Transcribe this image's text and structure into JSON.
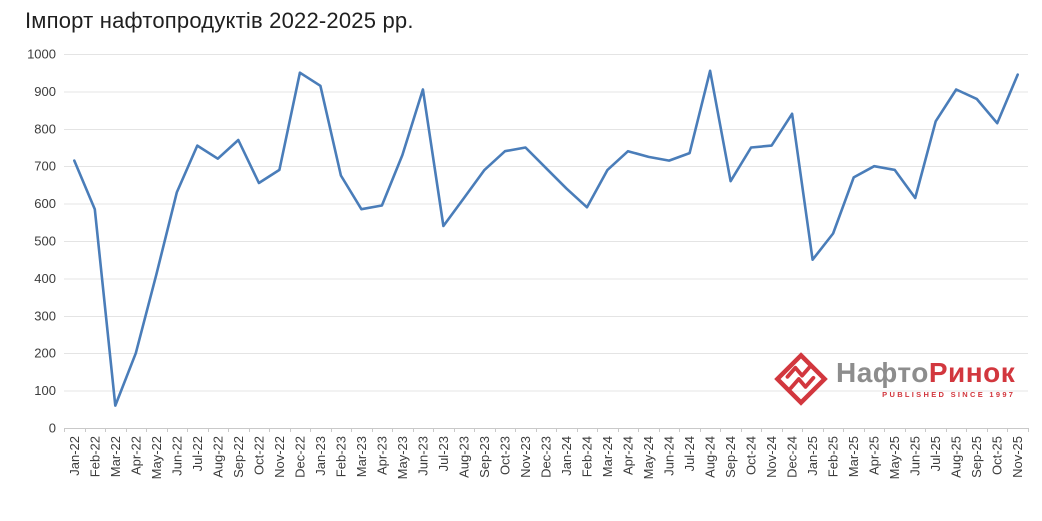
{
  "title": "Імпорт нафтопродуктів 2022-2025 рр.",
  "logo": {
    "icon": "diamond-zigzag-icon",
    "name_gray": "Нафто",
    "name_red": "Ринок",
    "tagline": "PUBLISHED SINCE 1997"
  },
  "colors": {
    "line": "#4a7db9",
    "grid": "#e4e4e4",
    "axis_line": "#c9c9c9",
    "axis_text": "#3c3c3c",
    "title_text": "#1f1f1f",
    "logo_red": "#d2373e",
    "logo_gray": "#8d8d8d",
    "background": "#ffffff"
  },
  "chart_data": {
    "type": "line",
    "title": "Імпорт нафтопродуктів 2022-2025 рр.",
    "categories": [
      "Jan-22",
      "Feb-22",
      "Mar-22",
      "Apr-22",
      "May-22",
      "Jun-22",
      "Jul-22",
      "Aug-22",
      "Sep-22",
      "Oct-22",
      "Nov-22",
      "Dec-22",
      "Jan-23",
      "Feb-23",
      "Mar-23",
      "Apr-23",
      "May-23",
      "Jun-23",
      "Jul-23",
      "Aug-23",
      "Sep-23",
      "Oct-23",
      "Nov-23",
      "Dec-23",
      "Jan-24",
      "Feb-24",
      "Mar-24",
      "Apr-24",
      "May-24",
      "Jun-24",
      "Jul-24",
      "Aug-24",
      "Sep-24",
      "Oct-24",
      "Nov-24",
      "Dec-24",
      "Jan-25",
      "Feb-25",
      "Mar-25",
      "Apr-25",
      "May-25",
      "Jun-25",
      "Jul-25",
      "Aug-25",
      "Sep-25",
      "Oct-25",
      "Nov-25"
    ],
    "values": [
      715,
      585,
      60,
      200,
      410,
      630,
      755,
      720,
      770,
      655,
      690,
      950,
      915,
      675,
      585,
      595,
      730,
      905,
      540,
      615,
      690,
      740,
      750,
      695,
      640,
      590,
      690,
      740,
      725,
      715,
      735,
      955,
      660,
      750,
      755,
      840,
      450,
      520,
      670,
      700,
      690,
      615,
      820,
      905,
      880,
      815,
      945
    ],
    "xlabel": "",
    "ylabel": "",
    "ylim": [
      0,
      1000
    ],
    "yticks": [
      0,
      100,
      200,
      300,
      400,
      500,
      600,
      700,
      800,
      900,
      1000
    ],
    "grid": "horizontal",
    "legend": "none",
    "x_label_rotation": -90
  }
}
